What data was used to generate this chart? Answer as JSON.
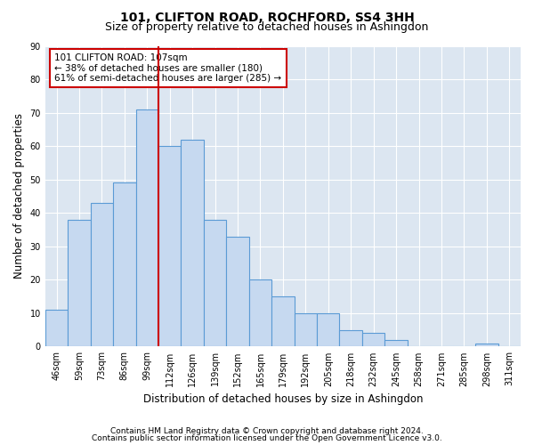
{
  "title": "101, CLIFTON ROAD, ROCHFORD, SS4 3HH",
  "subtitle": "Size of property relative to detached houses in Ashingdon",
  "xlabel": "Distribution of detached houses by size in Ashingdon",
  "ylabel": "Number of detached properties",
  "categories": [
    "46sqm",
    "59sqm",
    "73sqm",
    "86sqm",
    "99sqm",
    "112sqm",
    "126sqm",
    "139sqm",
    "152sqm",
    "165sqm",
    "179sqm",
    "192sqm",
    "205sqm",
    "218sqm",
    "232sqm",
    "245sqm",
    "258sqm",
    "271sqm",
    "285sqm",
    "298sqm",
    "311sqm"
  ],
  "values": [
    11,
    38,
    43,
    49,
    71,
    60,
    62,
    38,
    33,
    20,
    15,
    10,
    10,
    5,
    4,
    2,
    0,
    0,
    0,
    1,
    0
  ],
  "bar_color": "#c6d9f0",
  "bar_edge_color": "#5b9bd5",
  "vline_color": "#cc0000",
  "vline_x": 4.5,
  "annotation_text": "101 CLIFTON ROAD: 107sqm\n← 38% of detached houses are smaller (180)\n61% of semi-detached houses are larger (285) →",
  "annotation_box_color": "#ffffff",
  "annotation_box_edge": "#cc0000",
  "ylim": [
    0,
    90
  ],
  "yticks": [
    0,
    10,
    20,
    30,
    40,
    50,
    60,
    70,
    80,
    90
  ],
  "footer_line1": "Contains HM Land Registry data © Crown copyright and database right 2024.",
  "footer_line2": "Contains public sector information licensed under the Open Government Licence v3.0.",
  "fig_bg_color": "#ffffff",
  "plot_bg_color": "#dce6f1",
  "grid_color": "#ffffff",
  "title_fontsize": 10,
  "subtitle_fontsize": 9,
  "axis_label_fontsize": 8.5,
  "tick_fontsize": 7,
  "annot_fontsize": 7.5,
  "footer_fontsize": 6.5
}
